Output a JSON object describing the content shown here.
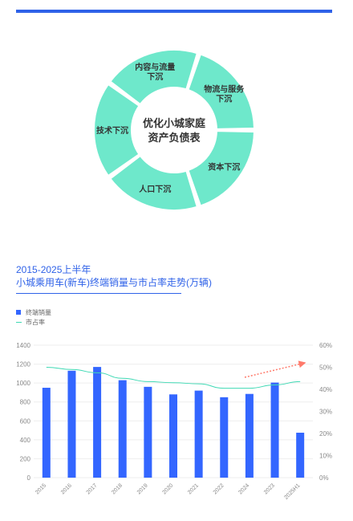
{
  "cycle_diagram": {
    "center_line1": "优化小城家庭",
    "center_line2": "资产负债表",
    "segments": [
      {
        "line1": "内容与流量",
        "line2": "下沉"
      },
      {
        "line1": "物流与服务",
        "line2": "下沉"
      },
      {
        "line1": "资本下沉",
        "line2": ""
      },
      {
        "line1": "人口下沉",
        "line2": ""
      },
      {
        "line1": "技术下沉",
        "line2": ""
      }
    ],
    "fill_color": "#6ee8cb",
    "text_color": "#333333"
  },
  "chart_data": {
    "type": "bar",
    "title_line1": "2015-2025上半年",
    "title_line2": "小城乘用车(新车)终端销量与市占率走势(万辆)",
    "categories": [
      "2015",
      "2016",
      "2017",
      "2018",
      "2019",
      "2020",
      "2021",
      "2022",
      "2024",
      "2023",
      "2025H1"
    ],
    "series": [
      {
        "name": "终端销量",
        "type": "bar",
        "axis": "left",
        "color": "#3366ff",
        "values": [
          950,
          1130,
          1170,
          1030,
          960,
          880,
          920,
          850,
          885,
          1005,
          475
        ]
      },
      {
        "name": "市占率",
        "type": "line",
        "axis": "right",
        "color": "#3fd9b4",
        "values": [
          50,
          49,
          47.5,
          45,
          43.5,
          43,
          42.5,
          40.5,
          40.5,
          42,
          43.5
        ]
      }
    ],
    "ylim_left": [
      0,
      1400
    ],
    "yticks_left": [
      "0",
      "200",
      "400",
      "600",
      "800",
      "1000",
      "1200",
      "1400"
    ],
    "ylim_right": [
      0,
      60
    ],
    "yticks_right": [
      "0%",
      "10%",
      "20%",
      "30%",
      "40%",
      "50%",
      "60%"
    ],
    "trend_arrow_color": "#ff7a6b",
    "grid": true,
    "legend_position": "top-left"
  }
}
